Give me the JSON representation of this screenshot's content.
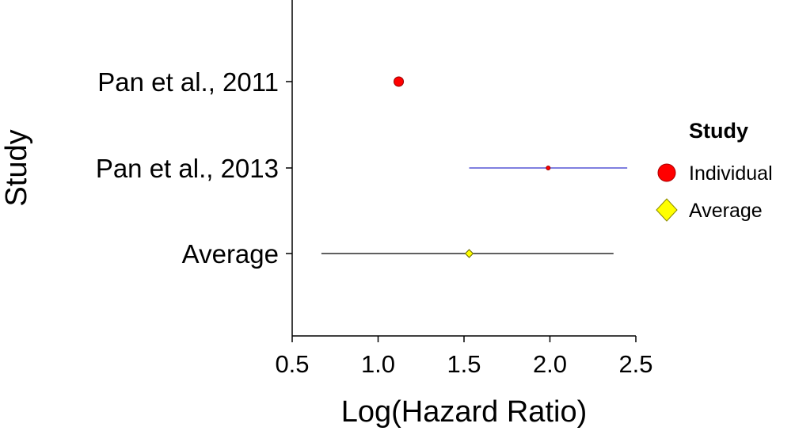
{
  "chart_data": {
    "type": "forest",
    "xlabel": "Log(Hazard Ratio)",
    "ylabel": "Study",
    "xlim": [
      0.5,
      2.5
    ],
    "x_ticks": [
      "0.5",
      "1.0",
      "1.5",
      "2.0",
      "2.5"
    ],
    "x_tick_values": [
      0.5,
      1.0,
      1.5,
      2.0,
      2.5
    ],
    "grid": false,
    "legend_position": "right",
    "legend": {
      "title": "Study",
      "entries": [
        {
          "label": "Individual",
          "marker": "circle",
          "color": "#ff0000"
        },
        {
          "label": "Average",
          "marker": "diamond",
          "color": "#ffff00"
        }
      ]
    },
    "rows": [
      {
        "label": "Pan et al., 2011",
        "estimate": 1.12,
        "lower": 1.1,
        "upper": 1.15,
        "type": "Individual",
        "marker_size": 6,
        "ci_color": "#3333cc"
      },
      {
        "label": "Pan et al., 2013",
        "estimate": 1.99,
        "lower": 1.53,
        "upper": 2.45,
        "type": "Individual",
        "marker_size": 2.5,
        "ci_color": "#3333cc"
      },
      {
        "label": "Average",
        "estimate": 1.53,
        "lower": 0.67,
        "upper": 2.37,
        "type": "Average",
        "marker_size": 5,
        "ci_color": "#000000"
      }
    ]
  }
}
